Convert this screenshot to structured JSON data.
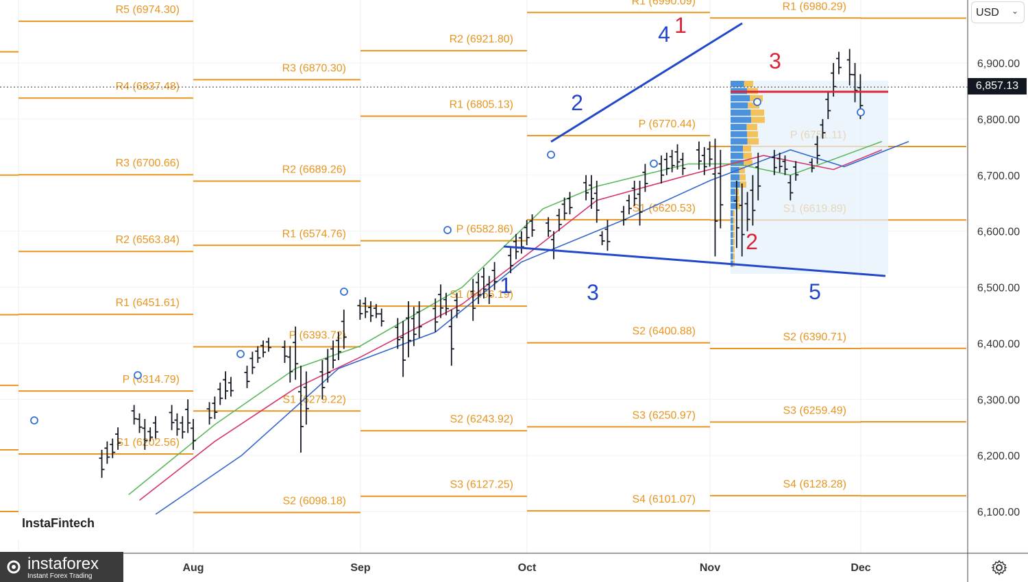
{
  "currency_selector": {
    "label": "USD"
  },
  "watermarks": {
    "chart_brand": "InstaFintech",
    "broker_name": "instaforex",
    "broker_tagline": "Instant Forex Trading"
  },
  "last_price_label": "6,857.13",
  "chart_data": {
    "type": "ohlc",
    "title": "",
    "xlabel": "",
    "ylabel": "",
    "ylim": [
      6030,
      7010
    ],
    "y_ticks": [
      "6,100.00",
      "6,200.00",
      "6,300.00",
      "6,400.00",
      "6,500.00",
      "6,600.00",
      "6,700.00",
      "6,800.00",
      "6,900.00"
    ],
    "x_ticks": [
      "Aug",
      "Sep",
      "Oct",
      "Nov",
      "Dec"
    ],
    "last_price": 6857.13,
    "colors": {
      "pivot": "#e8951f",
      "bars": "#131722",
      "trend": "#2347c9",
      "resistance": "#d9253a",
      "ma_fast": "#5cb85c",
      "ma_mid": "#d6336c",
      "ma_slow": "#3366cc",
      "wave_blue": "#2347c9",
      "wave_red": "#d9253a"
    },
    "pivot_periods": [
      {
        "month": "Jul",
        "levels": [
          {
            "label": "R5 (6974.30)",
            "value": 6974.3
          },
          {
            "label": "R4 (6837.48)",
            "value": 6837.48
          },
          {
            "label": "R3 (6700.66)",
            "value": 6700.66
          },
          {
            "label": "R2 (6563.84)",
            "value": 6563.84
          },
          {
            "label": "R1 (6451.61)",
            "value": 6451.61
          },
          {
            "label": "P (6314.79)",
            "value": 6314.79
          },
          {
            "label": "S1 (6202.56)",
            "value": 6202.56
          }
        ]
      },
      {
        "month": "Aug",
        "levels": [
          {
            "label": "R3 (6870.30)",
            "value": 6870.3
          },
          {
            "label": "R2 (6689.26)",
            "value": 6689.26
          },
          {
            "label": "R1 (6574.76)",
            "value": 6574.76
          },
          {
            "label": "P (6393.72)",
            "value": 6393.72
          },
          {
            "label": "S1 (6279.22)",
            "value": 6279.22
          },
          {
            "label": "S2 (6098.18)",
            "value": 6098.18
          }
        ]
      },
      {
        "month": "Sep",
        "levels": [
          {
            "label": "R2 (6921.80)",
            "value": 6921.8
          },
          {
            "label": "R1 (6805.13)",
            "value": 6805.13
          },
          {
            "label": "P (6582.86)",
            "value": 6582.86
          },
          {
            "label": "S1 (6466.19)",
            "value": 6466.19
          },
          {
            "label": "S2 (6243.92)",
            "value": 6243.92
          },
          {
            "label": "S3 (6127.25)",
            "value": 6127.25
          }
        ]
      },
      {
        "month": "Oct",
        "levels": [
          {
            "label": "R1 (6990.09)",
            "value": 6990.09
          },
          {
            "label": "P (6770.44)",
            "value": 6770.44
          },
          {
            "label": "S1 (6620.53)",
            "value": 6620.53
          },
          {
            "label": "S2 (6400.88)",
            "value": 6400.88
          },
          {
            "label": "S3 (6250.97)",
            "value": 6250.97
          },
          {
            "label": "S4 (6101.07)",
            "value": 6101.07
          }
        ]
      },
      {
        "month": "Nov",
        "levels": [
          {
            "label": "R1 (6980.29)",
            "value": 6980.29
          },
          {
            "label": "P (6751.11)",
            "value": 6751.11
          },
          {
            "label": "S1 (6619.89)",
            "value": 6619.89
          },
          {
            "label": "S2 (6390.71)",
            "value": 6390.71
          },
          {
            "label": "S3 (6259.49)",
            "value": 6259.49
          },
          {
            "label": "S4 (6128.28)",
            "value": 6128.28
          }
        ]
      }
    ],
    "ohlc_bars": [
      {
        "date": "2025-07-15",
        "h": 6210,
        "l": 6160
      },
      {
        "date": "2025-07-16",
        "h": 6225,
        "l": 6185
      },
      {
        "date": "2025-07-17",
        "h": 6230,
        "l": 6195
      },
      {
        "date": "2025-07-18",
        "h": 6250,
        "l": 6210
      },
      {
        "date": "2025-07-21",
        "h": 6290,
        "l": 6255
      },
      {
        "date": "2025-07-22",
        "h": 6275,
        "l": 6240
      },
      {
        "date": "2025-07-23",
        "h": 6265,
        "l": 6210
      },
      {
        "date": "2025-07-24",
        "h": 6250,
        "l": 6225
      },
      {
        "date": "2025-07-25",
        "h": 6270,
        "l": 6230
      },
      {
        "date": "2025-07-28",
        "h": 6290,
        "l": 6245
      },
      {
        "date": "2025-07-29",
        "h": 6275,
        "l": 6235
      },
      {
        "date": "2025-07-30",
        "h": 6270,
        "l": 6230
      },
      {
        "date": "2025-07-31",
        "h": 6300,
        "l": 6240
      },
      {
        "date": "2025-08-01",
        "h": 6265,
        "l": 6210
      },
      {
        "date": "2025-08-04",
        "h": 6295,
        "l": 6255
      },
      {
        "date": "2025-08-05",
        "h": 6305,
        "l": 6265
      },
      {
        "date": "2025-08-06",
        "h": 6330,
        "l": 6290
      },
      {
        "date": "2025-08-07",
        "h": 6350,
        "l": 6300
      },
      {
        "date": "2025-08-08",
        "h": 6340,
        "l": 6305
      },
      {
        "date": "2025-08-11",
        "h": 6360,
        "l": 6320
      },
      {
        "date": "2025-08-12",
        "h": 6385,
        "l": 6345
      },
      {
        "date": "2025-08-13",
        "h": 6395,
        "l": 6365
      },
      {
        "date": "2025-08-14",
        "h": 6405,
        "l": 6375
      },
      {
        "date": "2025-08-15",
        "h": 6410,
        "l": 6385
      },
      {
        "date": "2025-08-18",
        "h": 6405,
        "l": 6365
      },
      {
        "date": "2025-08-19",
        "h": 6395,
        "l": 6330
      },
      {
        "date": "2025-08-20",
        "h": 6430,
        "l": 6335
      },
      {
        "date": "2025-08-21",
        "h": 6360,
        "l": 6205
      },
      {
        "date": "2025-08-22",
        "h": 6350,
        "l": 6255
      },
      {
        "date": "2025-08-25",
        "h": 6370,
        "l": 6300
      },
      {
        "date": "2025-08-26",
        "h": 6390,
        "l": 6330
      },
      {
        "date": "2025-08-27",
        "h": 6405,
        "l": 6355
      },
      {
        "date": "2025-08-28",
        "h": 6420,
        "l": 6370
      },
      {
        "date": "2025-08-29",
        "h": 6460,
        "l": 6390
      },
      {
        "date": "2025-09-01",
        "h": 6478,
        "l": 6442
      },
      {
        "date": "2025-09-02",
        "h": 6482,
        "l": 6445
      },
      {
        "date": "2025-09-03",
        "h": 6475,
        "l": 6438
      },
      {
        "date": "2025-09-04",
        "h": 6470,
        "l": 6445
      },
      {
        "date": "2025-09-05",
        "h": 6462,
        "l": 6430
      },
      {
        "date": "2025-09-08",
        "h": 6445,
        "l": 6390
      },
      {
        "date": "2025-09-09",
        "h": 6440,
        "l": 6340
      },
      {
        "date": "2025-09-10",
        "h": 6475,
        "l": 6375
      },
      {
        "date": "2025-09-11",
        "h": 6465,
        "l": 6395
      },
      {
        "date": "2025-09-12",
        "h": 6475,
        "l": 6410
      },
      {
        "date": "2025-09-15",
        "h": 6480,
        "l": 6420
      },
      {
        "date": "2025-09-16",
        "h": 6505,
        "l": 6445
      },
      {
        "date": "2025-09-17",
        "h": 6490,
        "l": 6450
      },
      {
        "date": "2025-09-18",
        "h": 6460,
        "l": 6360
      },
      {
        "date": "2025-09-19",
        "h": 6490,
        "l": 6445
      },
      {
        "date": "2025-09-22",
        "h": 6515,
        "l": 6440
      },
      {
        "date": "2025-09-23",
        "h": 6525,
        "l": 6470
      },
      {
        "date": "2025-09-24",
        "h": 6535,
        "l": 6480
      },
      {
        "date": "2025-09-25",
        "h": 6520,
        "l": 6470
      },
      {
        "date": "2025-09-26",
        "h": 6545,
        "l": 6495
      },
      {
        "date": "2025-09-29",
        "h": 6570,
        "l": 6525
      },
      {
        "date": "2025-09-30",
        "h": 6595,
        "l": 6550
      },
      {
        "date": "2025-10-01",
        "h": 6600,
        "l": 6560
      },
      {
        "date": "2025-10-02",
        "h": 6620,
        "l": 6575
      },
      {
        "date": "2025-10-03",
        "h": 6630,
        "l": 6590
      },
      {
        "date": "2025-10-06",
        "h": 6625,
        "l": 6590
      },
      {
        "date": "2025-10-07",
        "h": 6600,
        "l": 6550
      },
      {
        "date": "2025-10-08",
        "h": 6640,
        "l": 6600
      },
      {
        "date": "2025-10-09",
        "h": 6660,
        "l": 6620
      },
      {
        "date": "2025-10-10",
        "h": 6670,
        "l": 6630
      },
      {
        "date": "2025-10-13",
        "h": 6700,
        "l": 6655
      },
      {
        "date": "2025-10-14",
        "h": 6700,
        "l": 6640
      },
      {
        "date": "2025-10-15",
        "h": 6690,
        "l": 6615
      },
      {
        "date": "2025-10-16",
        "h": 6600,
        "l": 6575
      },
      {
        "date": "2025-10-17",
        "h": 6620,
        "l": 6565
      },
      {
        "date": "2025-10-20",
        "h": 6645,
        "l": 6610
      },
      {
        "date": "2025-10-21",
        "h": 6665,
        "l": 6630
      },
      {
        "date": "2025-10-22",
        "h": 6690,
        "l": 6645
      },
      {
        "date": "2025-10-23",
        "h": 6690,
        "l": 6610
      },
      {
        "date": "2025-10-24",
        "h": 6720,
        "l": 6670
      },
      {
        "date": "2025-10-27",
        "h": 6735,
        "l": 6685
      },
      {
        "date": "2025-10-28",
        "h": 6740,
        "l": 6700
      },
      {
        "date": "2025-10-29",
        "h": 6745,
        "l": 6705
      },
      {
        "date": "2025-10-30",
        "h": 6755,
        "l": 6710
      },
      {
        "date": "2025-10-31",
        "h": 6740,
        "l": 6700
      },
      {
        "date": "2025-11-03",
        "h": 6760,
        "l": 6710
      },
      {
        "date": "2025-11-04",
        "h": 6750,
        "l": 6700
      },
      {
        "date": "2025-11-05",
        "h": 6760,
        "l": 6715
      },
      {
        "date": "2025-11-06",
        "h": 6765,
        "l": 6555
      },
      {
        "date": "2025-11-07",
        "h": 6745,
        "l": 6605
      },
      {
        "date": "2025-11-10",
        "h": 6690,
        "l": 6570
      },
      {
        "date": "2025-11-11",
        "h": 6685,
        "l": 6555
      },
      {
        "date": "2025-11-12",
        "h": 6670,
        "l": 6600
      },
      {
        "date": "2025-11-13",
        "h": 6700,
        "l": 6610
      },
      {
        "date": "2025-11-14",
        "h": 6740,
        "l": 6655
      },
      {
        "date": "2025-11-17",
        "h": 6745,
        "l": 6700
      },
      {
        "date": "2025-11-18",
        "h": 6740,
        "l": 6705
      },
      {
        "date": "2025-11-19",
        "h": 6735,
        "l": 6700
      },
      {
        "date": "2025-11-20",
        "h": 6700,
        "l": 6655
      },
      {
        "date": "2025-11-21",
        "h": 6725,
        "l": 6690
      },
      {
        "date": "2025-11-24",
        "h": 6730,
        "l": 6705
      },
      {
        "date": "2025-11-25",
        "h": 6770,
        "l": 6720
      },
      {
        "date": "2025-11-26",
        "h": 6800,
        "l": 6765
      },
      {
        "date": "2025-11-27",
        "h": 6850,
        "l": 6800
      },
      {
        "date": "2025-11-28",
        "h": 6900,
        "l": 6840
      },
      {
        "date": "2025-11-29",
        "h": 6920,
        "l": 6880
      },
      {
        "date": "2025-12-01",
        "h": 6925,
        "l": 6860
      },
      {
        "date": "2025-12-02",
        "h": 6900,
        "l": 6830
      },
      {
        "date": "2025-12-03",
        "h": 6880,
        "l": 6800
      }
    ],
    "annotations": {
      "wave_labels": [
        {
          "text": "1",
          "color": "blue"
        },
        {
          "text": "2",
          "color": "blue"
        },
        {
          "text": "3",
          "color": "blue"
        },
        {
          "text": "4",
          "color": "blue"
        },
        {
          "text": "5",
          "color": "blue"
        },
        {
          "text": "1",
          "color": "red"
        },
        {
          "text": "2",
          "color": "red"
        },
        {
          "text": "3",
          "color": "red"
        }
      ]
    }
  }
}
